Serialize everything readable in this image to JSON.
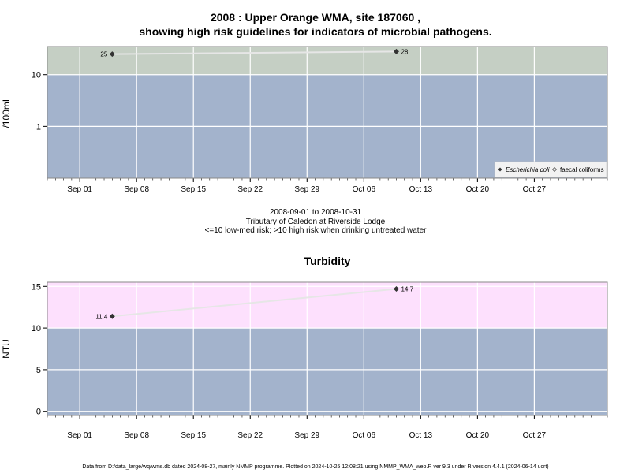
{
  "header": {
    "title_line1": "2008 : Upper Orange WMA, site 187060 ,",
    "title_line2": "showing high risk guidelines for indicators of microbial pathogens."
  },
  "caption": {
    "line1": "2008-09-01 to 2008-10-31",
    "line2": "Tributary of Caledon at Riverside Lodge",
    "line3": "<=10 low-med risk; >10 high risk when drinking untreated water"
  },
  "footer": {
    "text": "Data from D:/data_large/wq/wms.db dated 2024-08-27, mainly NMMP programme. Plotted on 2024-10-25 12:08:21 using NMMP_WMA_web.R ver 9.3 under R version 4.4.1 (2024-06-14 ucrt)"
  },
  "colors": {
    "low_band": "#a3b3cc",
    "high_band_microbial": "#c5cfc4",
    "high_band_turbidity": "#fde0fd",
    "grid": "#ffffff",
    "line": "#e6e6e6",
    "marker": "#333333"
  },
  "chart_data": [
    {
      "type": "scatter",
      "title": "",
      "xlabel": "",
      "ylabel": "/100mL",
      "yscale": "log",
      "ylim": [
        0.1,
        35
      ],
      "threshold": 10,
      "xlim": [
        "2008-08-28",
        "2008-11-05"
      ],
      "x_ticks": [
        "Sep 01",
        "Sep 08",
        "Sep 15",
        "Sep 22",
        "Sep 29",
        "Oct 06",
        "Oct 13",
        "Oct 20",
        "Oct 27"
      ],
      "y_ticks": [
        "1",
        "10"
      ],
      "legend": {
        "placement": "bottom-right",
        "entries": [
          "Escherichia coli",
          "faecal coliforms"
        ]
      },
      "series": [
        {
          "name": "Escherichia coli",
          "points": [
            {
              "x": "2008-09-05",
              "y": 25,
              "label": "25"
            },
            {
              "x": "2008-10-10",
              "y": 28,
              "label": "28"
            }
          ]
        },
        {
          "name": "faecal coliforms",
          "points": []
        }
      ]
    },
    {
      "type": "line",
      "title": "Turbidity",
      "xlabel": "",
      "ylabel": "NTU",
      "ylim": [
        -0.5,
        15.5
      ],
      "threshold": 10,
      "xlim": [
        "2008-08-28",
        "2008-11-05"
      ],
      "x_ticks": [
        "Sep 01",
        "Sep 08",
        "Sep 15",
        "Sep 22",
        "Sep 29",
        "Oct 06",
        "Oct 13",
        "Oct 20",
        "Oct 27"
      ],
      "y_ticks": [
        "0",
        "5",
        "10",
        "15"
      ],
      "series": [
        {
          "name": "",
          "points": [
            {
              "x": "2008-09-05",
              "y": 11.4,
              "label": "11.4"
            },
            {
              "x": "2008-10-10",
              "y": 14.7,
              "label": "14.7"
            }
          ]
        }
      ]
    }
  ]
}
